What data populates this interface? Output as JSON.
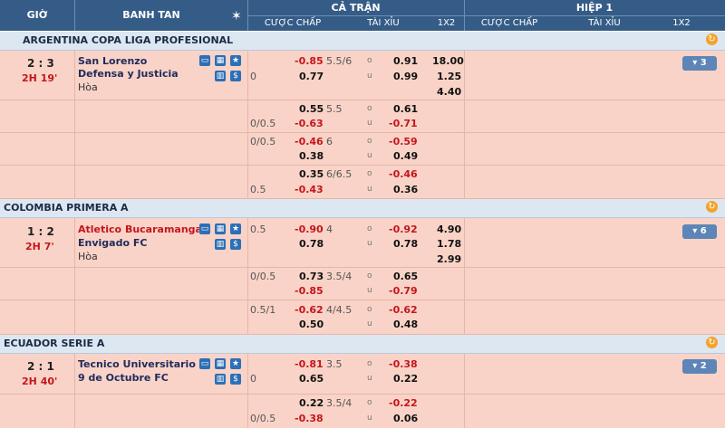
{
  "header": {
    "col_time": "GIỜ",
    "col_match": "BANH TAN",
    "full_time": "CẢ TRẬN",
    "half_time": "HIỆP 1",
    "handicap": "CƯỢC CHẤP",
    "over_under": "TÀI XỈU",
    "x12": "1X2",
    "handicap_h1": "CƯỢC CHẤP",
    "over_under_h1": "TÀI XỈU",
    "x12_h1": "1X2"
  },
  "labels": {
    "o": "o",
    "u": "u",
    "draw": "Hòa"
  },
  "leagues": [
    {
      "name": "ARGENTINA COPA LIGA PROFESIONAL"
    },
    {
      "name": "COLOMBIA PRIMERA A"
    },
    {
      "name": "ECUADOR SERIE A"
    }
  ],
  "matches": [
    {
      "score": "2 : 3",
      "time": "2H 19'",
      "home": "San Lorenzo",
      "away": "Defensa y Justicia",
      "more": "▾ 3",
      "x12": [
        "18.00",
        "1.25",
        "4.40"
      ],
      "main": {
        "hcap": "0",
        "h1": "-0.85",
        "h2": "0.77",
        "ou": "5.5/6",
        "o": "0.91",
        "u": "0.99"
      },
      "extra": [
        {
          "hcap": "0/0.5",
          "h1": "0.55",
          "h2": "-0.63",
          "ou": "5.5",
          "o": "0.61",
          "u": "-0.71"
        },
        {
          "hcap": "0/0.5",
          "h1": "-0.46",
          "h2": "0.38",
          "ou": "6",
          "o": "-0.59",
          "u": "0.49"
        },
        {
          "hcap": "0.5",
          "h1": "0.35",
          "h2": "-0.43",
          "ou": "6/6.5",
          "o": "-0.46",
          "u": "0.36"
        }
      ]
    },
    {
      "score": "1 : 2",
      "time": "2H 7'",
      "home": "Atletico Bucaramanga",
      "away": "Envigado FC",
      "more": "▾ 6",
      "x12": [
        "4.90",
        "1.78",
        "2.99"
      ],
      "main": {
        "hcap": "0.5",
        "h1": "-0.90",
        "h2": "0.78",
        "ou": "4",
        "o": "-0.92",
        "u": "0.78"
      },
      "extra": [
        {
          "hcap": "0/0.5",
          "h1": "0.73",
          "h2": "-0.85",
          "ou": "3.5/4",
          "o": "0.65",
          "u": "-0.79"
        },
        {
          "hcap": "0.5/1",
          "h1": "-0.62",
          "h2": "0.50",
          "ou": "4/4.5",
          "o": "-0.62",
          "u": "0.48"
        }
      ]
    },
    {
      "score": "2 : 1",
      "time": "2H 40'",
      "home": "Tecnico Universitario",
      "away": "9 de Octubre FC",
      "more": "▾ 2",
      "main": {
        "hcap": "0",
        "h1": "-0.81",
        "h2": "0.65",
        "ou": "3.5",
        "o": "-0.38",
        "u": "0.22"
      },
      "extra": [
        {
          "hcap": "0/0.5",
          "h1": "0.22",
          "h2": "-0.38",
          "ou": "3.5/4",
          "o": "-0.22",
          "u": "0.06"
        }
      ]
    }
  ]
}
